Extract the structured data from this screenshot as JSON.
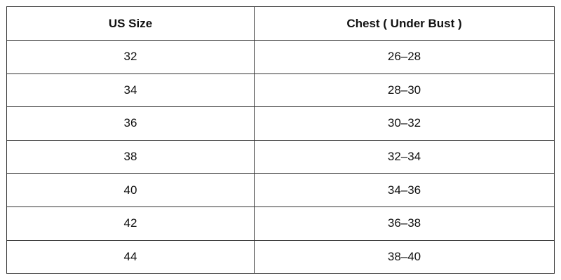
{
  "table": {
    "headers": [
      "US Size",
      "Chest ( Under Bust )"
    ],
    "rows": [
      [
        "32",
        "26–28"
      ],
      [
        "34",
        "28–30"
      ],
      [
        "36",
        "30–32"
      ],
      [
        "38",
        "32–34"
      ],
      [
        "40",
        "34–36"
      ],
      [
        "42",
        "36–38"
      ],
      [
        "44",
        "38–40"
      ]
    ]
  }
}
